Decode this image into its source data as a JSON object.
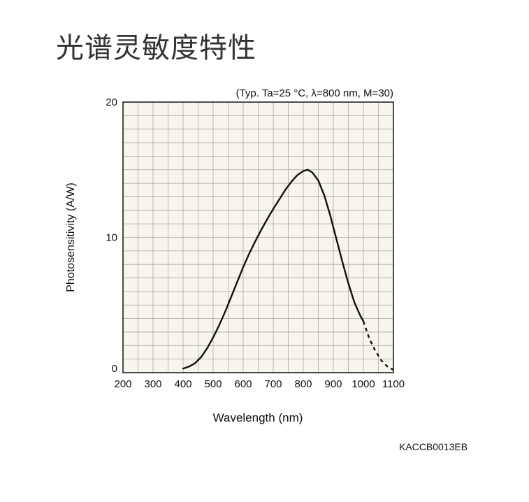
{
  "page": {
    "title": "光谱灵敏度特性",
    "doc_code": "KACCB0013EB"
  },
  "chart_data": {
    "type": "line",
    "title": "",
    "conditions": "(Typ. Ta=25 °C, λ=800 nm, M=30)",
    "xlabel": "Wavelength (nm)",
    "ylabel": "Photosensitivity (A/W)",
    "xlim": [
      200,
      1100
    ],
    "ylim": [
      0,
      20
    ],
    "x_ticks": [
      200,
      300,
      400,
      500,
      600,
      700,
      800,
      900,
      1000,
      1100
    ],
    "x_tick_labels": [
      "200",
      "300",
      "400",
      "500",
      "600",
      "700",
      "800",
      "900",
      "1000",
      "1100"
    ],
    "y_ticks": [
      0,
      10,
      20
    ],
    "y_tick_labels": [
      "0",
      "10",
      "20"
    ],
    "grid": true,
    "grid_x_step": 50,
    "grid_y_step": 1,
    "colors": {
      "background": "#f8f5ec",
      "grid": "#a8a8a8",
      "line": "#111111"
    },
    "series": [
      {
        "style": "solid",
        "x": [
          400,
          420,
          440,
          460,
          480,
          500,
          520,
          540,
          560,
          580,
          600,
          620,
          640,
          660,
          680,
          700,
          720,
          740,
          760,
          780,
          800,
          815,
          830,
          850,
          870,
          890,
          910,
          930,
          950,
          970,
          990,
          1000
        ],
        "y": [
          0.3,
          0.45,
          0.7,
          1.15,
          1.8,
          2.6,
          3.5,
          4.5,
          5.6,
          6.7,
          7.8,
          8.8,
          9.7,
          10.55,
          11.35,
          12.1,
          12.8,
          13.5,
          14.1,
          14.6,
          14.9,
          15.0,
          14.8,
          14.2,
          13.1,
          11.6,
          9.9,
          8.2,
          6.6,
          5.2,
          4.2,
          3.8
        ]
      },
      {
        "style": "dashed",
        "x": [
          1000,
          1020,
          1040,
          1060,
          1080,
          1100
        ],
        "y": [
          3.8,
          2.5,
          1.6,
          0.9,
          0.45,
          0.2
        ]
      }
    ]
  }
}
